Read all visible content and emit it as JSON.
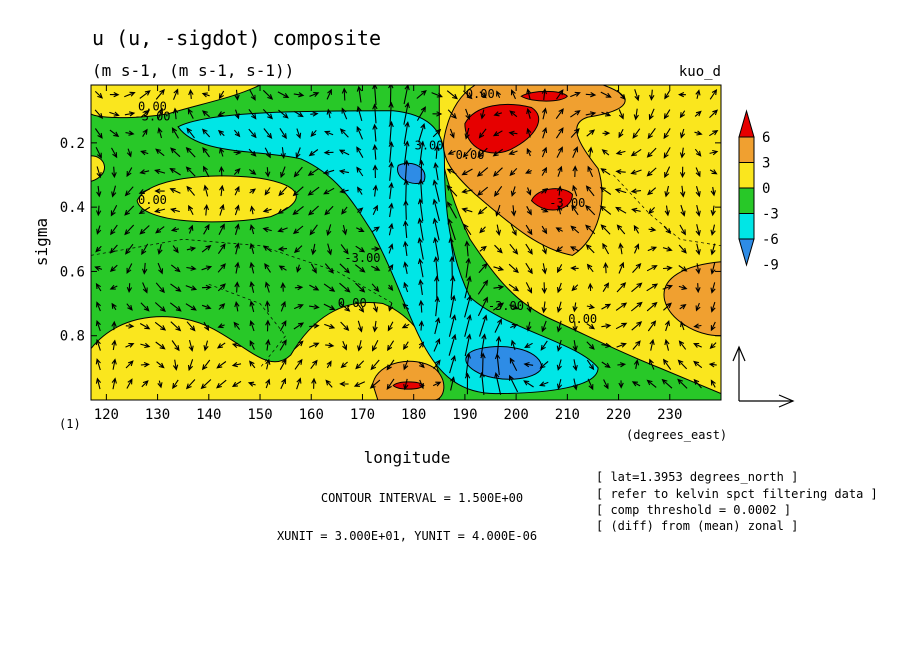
{
  "chart_data": {
    "type": "heatmap",
    "title": "u (u, -sigdot) composite",
    "subtitle": "(m s-1, (m s-1, s-1))",
    "dataset_label": "kuo_d",
    "xlabel": "longitude",
    "xunit": "(degrees_east)",
    "ylabel": "sigma",
    "panel_label": "(1)",
    "xlim": [
      117,
      240
    ],
    "ylim": [
      1.0,
      0.02
    ],
    "x_ticks": [
      "120",
      "130",
      "140",
      "150",
      "160",
      "170",
      "180",
      "190",
      "200",
      "210",
      "220",
      "230"
    ],
    "y_ticks": [
      "0.2",
      "0.4",
      "0.6",
      "0.8"
    ],
    "colorbar": {
      "labels": [
        "6",
        "3",
        "0",
        "-3",
        "-6",
        "-9"
      ],
      "colors": [
        "#e60000",
        "#f0a030",
        "#fae61e",
        "#28c828",
        "#00e6e6",
        "#2e8ce6"
      ],
      "extremes": {
        "top": "#e60000",
        "bottom": "#2e8ce6"
      }
    },
    "background_fill": "green (between -3 and 0)",
    "contour_labels": [
      {
        "text": "0.00",
        "x": 129,
        "y": 0.1
      },
      {
        "text": "-3.00",
        "x": 129,
        "y": 0.13
      },
      {
        "text": "0.00",
        "x": 129,
        "y": 0.39
      },
      {
        "text": "-3.00",
        "x": 170,
        "y": 0.57
      },
      {
        "text": "0.00",
        "x": 168,
        "y": 0.71
      },
      {
        "text": "0.00",
        "x": 193,
        "y": 0.06
      },
      {
        "text": "3.00",
        "x": 183,
        "y": 0.22
      },
      {
        "text": "0.00",
        "x": 191,
        "y": 0.25
      },
      {
        "text": "-3.00",
        "x": 210,
        "y": 0.4
      },
      {
        "text": "-3.00",
        "x": 198,
        "y": 0.72
      },
      {
        "text": "0.00",
        "x": 213,
        "y": 0.76
      }
    ],
    "regions": [
      {
        "level": "0 to 3",
        "color": "#fae61e",
        "shape": "upper-left band",
        "x": [
          117,
          150
        ],
        "y": [
          0.02,
          0.12
        ]
      },
      {
        "level": "0 to 3",
        "color": "#fae61e",
        "shape": "upper-right broad region",
        "x": [
          188,
          240
        ],
        "y": [
          0.02,
          0.98
        ]
      },
      {
        "level": "0 to 3",
        "color": "#fae61e",
        "shape": "lower-left blobs",
        "x": [
          117,
          185
        ],
        "y": [
          0.68,
          1.0
        ]
      },
      {
        "level": "0 to 3",
        "color": "#fae61e",
        "shape": "mid-left patches",
        "x": [
          125,
          160
        ],
        "y": [
          0.3,
          0.45
        ]
      },
      {
        "level": "-6 to -3",
        "color": "#00e6e6",
        "shape": "tilted tongue from upper-left to lower-right",
        "x": [
          133,
          215
        ],
        "y": [
          0.1,
          1.0
        ]
      },
      {
        "level": "-9 to -6",
        "color": "#2e8ce6",
        "shape": "small cores",
        "x": [
          175,
          205
        ],
        "y": [
          0.25,
          0.95
        ]
      },
      {
        "level": "3 to 6",
        "color": "#f0a030",
        "shape": "upper-right core",
        "x": [
          185,
          222
        ],
        "y": [
          0.02,
          0.55
        ]
      },
      {
        "level": "3 to 6",
        "color": "#f0a030",
        "shape": "right edge patch",
        "x": [
          228,
          240
        ],
        "y": [
          0.58,
          0.8
        ]
      },
      {
        "level": "3 to 6",
        "color": "#f0a030",
        "shape": "lower center blob",
        "x": [
          172,
          186
        ],
        "y": [
          0.87,
          1.0
        ]
      },
      {
        "level": "> 6",
        "color": "#e60000",
        "shape": "upper core",
        "x": [
          190,
          205
        ],
        "y": [
          0.05,
          0.25
        ]
      },
      {
        "level": "> 6",
        "color": "#e60000",
        "shape": "upper small core",
        "x": [
          201,
          210
        ],
        "y": [
          0.03,
          0.08
        ]
      },
      {
        "level": "> 6",
        "color": "#e60000",
        "shape": "small core",
        "x": [
          203,
          211
        ],
        "y": [
          0.33,
          0.43
        ]
      },
      {
        "level": "> 6",
        "color": "#e60000",
        "shape": "bottom small core",
        "x": [
          176,
          182
        ],
        "y": [
          0.94,
          0.97
        ]
      }
    ],
    "vector_field": {
      "component_x": "u",
      "component_y": "-sigdot",
      "x_spacing_deg": 3,
      "sigma_spacing": 0.06
    }
  },
  "footer": {
    "contour_interval": "CONTOUR INTERVAL = 1.500E+00",
    "units": "XUNIT = 3.000E+01, YUNIT = 4.000E-06"
  },
  "notes": [
    "[ lat=1.3953 degrees_north ]",
    "[ refer to kelvin spct filtering data ]",
    "[ comp threshold = 0.0002 ]",
    "[ (diff) from (mean) zonal ]"
  ]
}
